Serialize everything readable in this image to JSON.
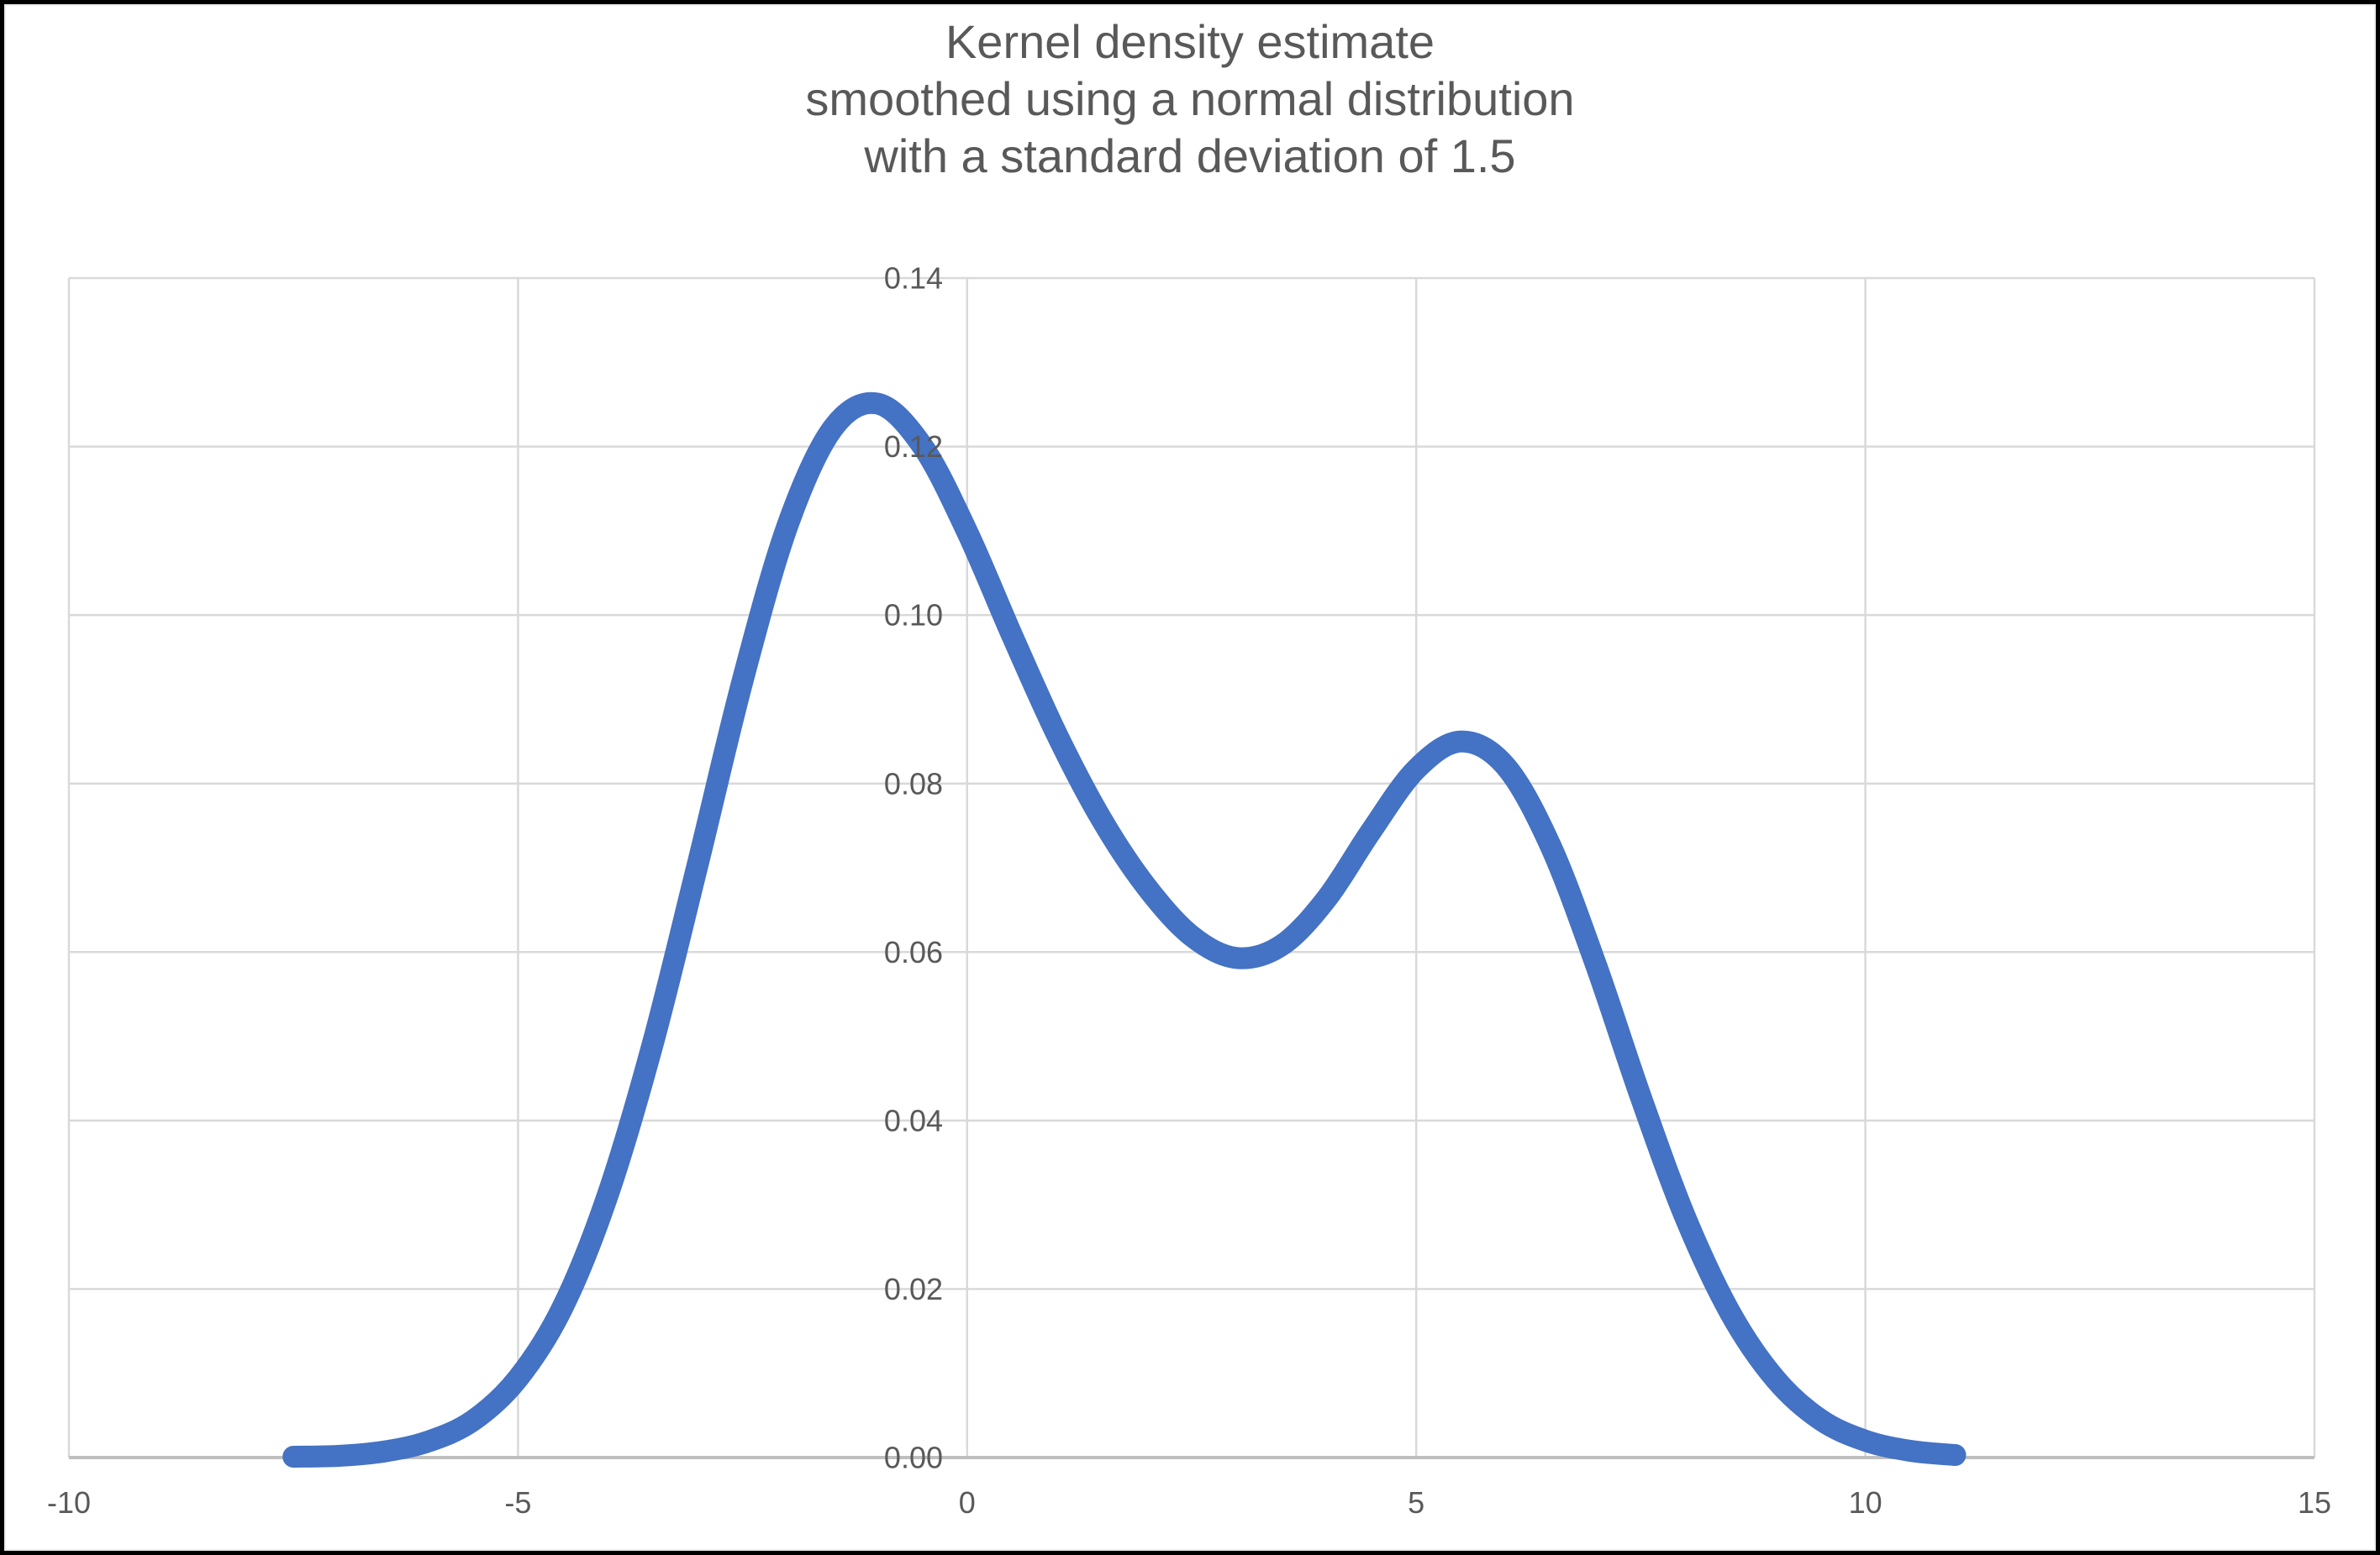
{
  "chart_data": {
    "type": "line",
    "title": "Kernel density estimate smoothed using a normal distribution with a standard deviation of 1.5",
    "title_lines": [
      "Kernel density estimate",
      "smoothed using a normal distribution",
      "with a standard deviation of 1.5"
    ],
    "xlabel": "",
    "ylabel": "",
    "xlim": [
      -10,
      15
    ],
    "ylim": [
      0,
      0.14
    ],
    "grid": true,
    "legend_position": "none",
    "x_ticks": [
      {
        "value": -10,
        "label": "-10"
      },
      {
        "value": -5,
        "label": "-5"
      },
      {
        "value": 0,
        "label": "0"
      },
      {
        "value": 5,
        "label": "5"
      },
      {
        "value": 10,
        "label": "10"
      },
      {
        "value": 15,
        "label": "15"
      }
    ],
    "y_ticks": [
      {
        "value": 0.0,
        "label": "0.00"
      },
      {
        "value": 0.02,
        "label": "0.02"
      },
      {
        "value": 0.04,
        "label": "0.04"
      },
      {
        "value": 0.06,
        "label": "0.06"
      },
      {
        "value": 0.08,
        "label": "0.08"
      },
      {
        "value": 0.1,
        "label": "0.10"
      },
      {
        "value": 0.12,
        "label": "0.12"
      },
      {
        "value": 0.14,
        "label": "0.14"
      }
    ],
    "series": [
      {
        "name": "Kernel density estimate",
        "color": "#4472C4",
        "line_width": 26,
        "x": [
          -7.5,
          -7.0,
          -6.5,
          -6.0,
          -5.5,
          -5.0,
          -4.5,
          -4.0,
          -3.5,
          -3.0,
          -2.5,
          -2.0,
          -1.5,
          -1.0,
          -0.5,
          0.0,
          0.5,
          1.0,
          1.5,
          2.0,
          2.5,
          3.0,
          3.5,
          4.0,
          4.5,
          5.0,
          5.5,
          6.0,
          6.5,
          7.0,
          7.5,
          8.0,
          8.5,
          9.0,
          9.5,
          10.0,
          10.5,
          11.0
        ],
        "y": [
          0.0001,
          0.0002,
          0.0007,
          0.0019,
          0.0044,
          0.0094,
          0.0179,
          0.0312,
          0.0491,
          0.0704,
          0.0922,
          0.1106,
          0.1221,
          0.1251,
          0.1201,
          0.1099,
          0.0976,
          0.0858,
          0.0757,
          0.0677,
          0.0619,
          0.0593,
          0.0608,
          0.0663,
          0.0744,
          0.0817,
          0.085,
          0.082,
          0.0725,
          0.0585,
          0.0428,
          0.0284,
          0.0171,
          0.0093,
          0.0045,
          0.002,
          0.0008,
          0.0003
        ]
      }
    ],
    "annotations": {
      "peak_1": {
        "x": -1.0,
        "y": 0.125
      },
      "valley": {
        "x": 3.0,
        "y": 0.059
      },
      "peak_2": {
        "x": 5.5,
        "y": 0.085
      }
    },
    "colors": {
      "line": "#4472C4",
      "gridline": "#D9D9D9",
      "axis_line": "#BFBFBF",
      "text": "#595959",
      "background": "#FFFFFF",
      "frame": "#000000"
    }
  }
}
